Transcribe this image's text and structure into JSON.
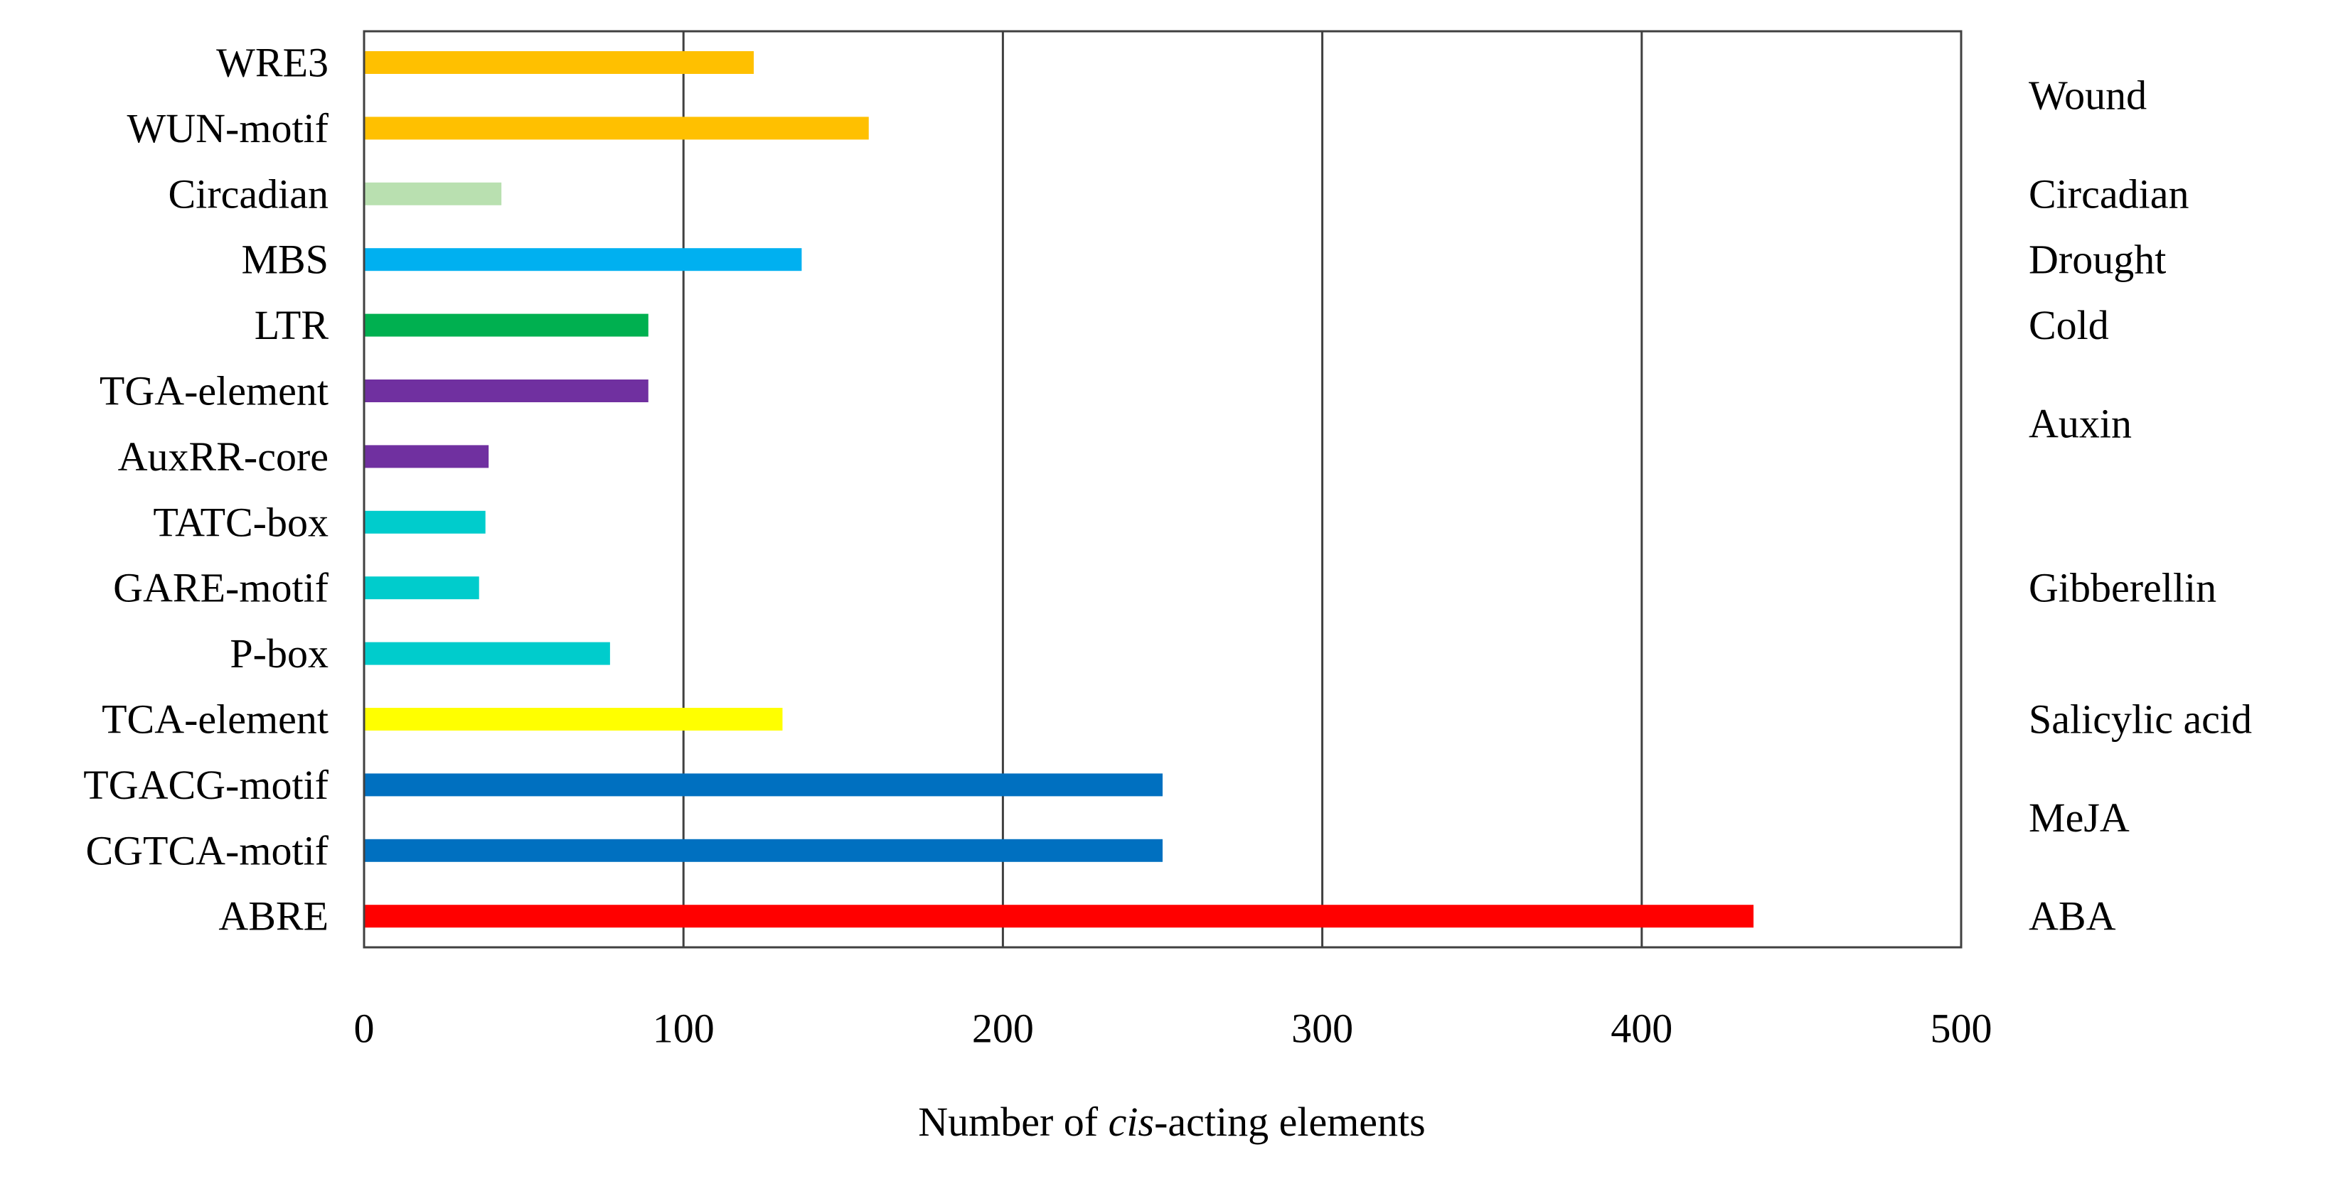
{
  "chart_data": {
    "type": "bar",
    "orientation": "horizontal",
    "categories": [
      "WRE3",
      "WUN-motif",
      "Circadian",
      "MBS",
      "LTR",
      "TGA-element",
      "AuxRR-core",
      "TATC-box",
      "GARE-motif",
      "P-box",
      "TCA-element",
      "TGACG-motif",
      "CGTCA-motif",
      "ABRE"
    ],
    "values": [
      122,
      158,
      43,
      137,
      89,
      89,
      39,
      38,
      36,
      77,
      131,
      250,
      250,
      435
    ],
    "bar_colors": [
      "#FFC000",
      "#FFC000",
      "#B9E0B0",
      "#00B0F0",
      "#00B050",
      "#7030A0",
      "#7030A0",
      "#00CCCC",
      "#00CCCC",
      "#00CCCC",
      "#FFFF00",
      "#0070C0",
      "#0070C0",
      "#FF0000"
    ],
    "groups": [
      {
        "label": "Wound",
        "categories": [
          "WRE3",
          "WUN-motif"
        ]
      },
      {
        "label": "Circadian",
        "categories": [
          "Circadian"
        ]
      },
      {
        "label": "Drought",
        "categories": [
          "MBS"
        ]
      },
      {
        "label": "Cold",
        "categories": [
          "LTR"
        ]
      },
      {
        "label": "Auxin",
        "categories": [
          "TGA-element",
          "AuxRR-core"
        ]
      },
      {
        "label": "Gibberellin",
        "categories": [
          "TATC-box",
          "GARE-motif",
          "P-box"
        ]
      },
      {
        "label": "Salicylic acid",
        "categories": [
          "TCA-element"
        ]
      },
      {
        "label": "MeJA",
        "categories": [
          "TGACG-motif",
          "CGTCA-motif"
        ]
      },
      {
        "label": "ABA",
        "categories": [
          "ABRE"
        ]
      }
    ],
    "xlabel_prefix": "Number of ",
    "xlabel_italic": "cis",
    "xlabel_suffix": "-acting elements",
    "xlim": [
      0,
      500
    ],
    "xticks": [
      0,
      100,
      200,
      300,
      400,
      500
    ],
    "grid": "vertical",
    "title": ""
  }
}
